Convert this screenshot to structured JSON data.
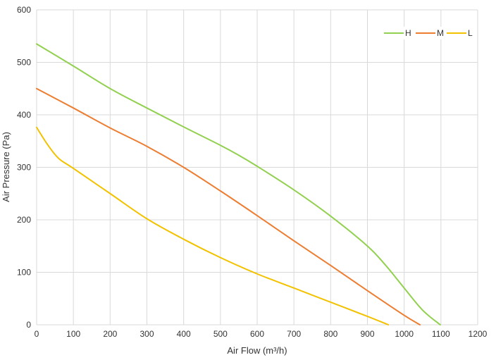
{
  "chart_data": {
    "type": "line",
    "title": "",
    "xlabel": "Air Flow  (m³/h)",
    "ylabel": "Air Pressure  (Pa)",
    "xlim": [
      0,
      1200
    ],
    "ylim": [
      0,
      600
    ],
    "x_ticks": [
      0,
      100,
      200,
      300,
      400,
      500,
      600,
      700,
      800,
      900,
      1000,
      1100,
      1200
    ],
    "y_ticks": [
      0,
      100,
      200,
      300,
      400,
      500,
      600
    ],
    "grid": true,
    "legend_position": "top-right",
    "series": [
      {
        "name": "H",
        "color": "#92d050",
        "points": [
          [
            0,
            535
          ],
          [
            100,
            493
          ],
          [
            200,
            450
          ],
          [
            300,
            413
          ],
          [
            400,
            377
          ],
          [
            500,
            342
          ],
          [
            550,
            323
          ],
          [
            600,
            302
          ],
          [
            700,
            257
          ],
          [
            800,
            207
          ],
          [
            900,
            150
          ],
          [
            950,
            113
          ],
          [
            1000,
            70
          ],
          [
            1050,
            28
          ],
          [
            1098,
            0
          ]
        ]
      },
      {
        "name": "M",
        "color": "#ed7d31",
        "points": [
          [
            0,
            450
          ],
          [
            100,
            413
          ],
          [
            200,
            375
          ],
          [
            300,
            340
          ],
          [
            400,
            300
          ],
          [
            500,
            255
          ],
          [
            600,
            208
          ],
          [
            700,
            160
          ],
          [
            800,
            113
          ],
          [
            900,
            65
          ],
          [
            1000,
            18
          ],
          [
            1043,
            0
          ]
        ]
      },
      {
        "name": "L",
        "color": "#f2c200",
        "points": [
          [
            0,
            376
          ],
          [
            30,
            343
          ],
          [
            60,
            317
          ],
          [
            100,
            298
          ],
          [
            200,
            250
          ],
          [
            300,
            202
          ],
          [
            400,
            163
          ],
          [
            500,
            128
          ],
          [
            600,
            97
          ],
          [
            700,
            70
          ],
          [
            800,
            43
          ],
          [
            900,
            16
          ],
          [
            957,
            0
          ]
        ]
      }
    ]
  }
}
